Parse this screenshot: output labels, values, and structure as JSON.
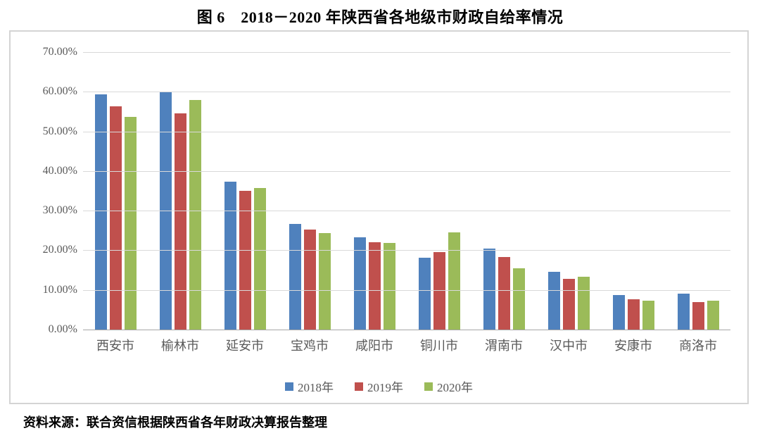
{
  "title": "图 6　2018－2020 年陕西省各地级市财政自给率情况",
  "source_note": "资料来源：联合资信根据陕西省各年财政决算报告整理",
  "chart_data": {
    "type": "bar",
    "title": "图 6　2018－2020 年陕西省各地级市财政自给率情况",
    "categories": [
      "西安市",
      "榆林市",
      "延安市",
      "宝鸡市",
      "咸阳市",
      "铜川市",
      "渭南市",
      "汉中市",
      "安康市",
      "商洛市"
    ],
    "series": [
      {
        "name": "2018年",
        "color": "#4F81BD",
        "values": [
          59.4,
          60.1,
          37.3,
          26.6,
          23.3,
          18.1,
          20.5,
          14.5,
          8.7,
          9.1
        ]
      },
      {
        "name": "2019年",
        "color": "#C0504D",
        "values": [
          56.3,
          54.6,
          35.0,
          25.2,
          22.0,
          19.6,
          18.3,
          12.8,
          7.6,
          7.0
        ]
      },
      {
        "name": "2020年",
        "color": "#9BBB59",
        "values": [
          53.7,
          58.0,
          35.8,
          24.4,
          21.9,
          24.5,
          15.5,
          13.3,
          7.2,
          7.2
        ]
      }
    ],
    "xlabel": "",
    "ylabel": "",
    "ylim": [
      0,
      70
    ],
    "ytick_step": 10,
    "yticks": [
      "70.00%",
      "60.00%",
      "50.00%",
      "40.00%",
      "30.00%",
      "20.00%",
      "10.00%",
      "0.00%"
    ],
    "grid": true,
    "legend_position": "bottom-inside"
  },
  "colors": {
    "series_2018": "#4F81BD",
    "series_2019": "#C0504D",
    "series_2020": "#9BBB59",
    "gridline": "#D9D9D9",
    "axis_line": "#A6A6A6",
    "axis_text": "#595959",
    "chart_border": "#D4D4D4",
    "title_text": "#000000"
  }
}
